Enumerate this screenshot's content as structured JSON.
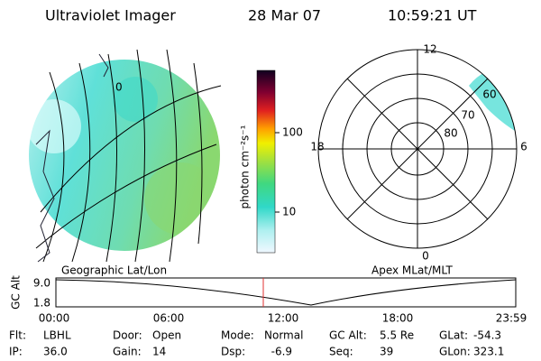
{
  "header": {
    "title": "Ultraviolet Imager",
    "date": "28 Mar 07",
    "time": "10:59:21 UT"
  },
  "geo_panel": {
    "label": "Geographic Lat/Lon",
    "annotation": "0"
  },
  "colorbar": {
    "label": "photon cm⁻²s⁻¹",
    "ticks": [
      "100",
      "10"
    ]
  },
  "polar_panel": {
    "label": "Apex MLat/MLT",
    "mlt_labels": [
      "12",
      "18",
      "6",
      "0"
    ],
    "lat_labels": [
      "60",
      "70",
      "80"
    ]
  },
  "orbit": {
    "ylabel": "GC Alt",
    "yticks": [
      "9.0",
      "1.8"
    ],
    "xticks": [
      "00:00",
      "06:00",
      "12:00",
      "18:00",
      "23:59"
    ]
  },
  "info": [
    [
      {
        "label": "Flt:",
        "value": "LBHL"
      },
      {
        "label": "Door:",
        "value": "Open"
      },
      {
        "label": "Mode:",
        "value": "Normal"
      },
      {
        "label": "GC Alt:",
        "value": "5.5 Re"
      },
      {
        "label": "GLat:",
        "value": "-54.3"
      }
    ],
    [
      {
        "label": "IP:",
        "value": "36.0"
      },
      {
        "label": "Gain:",
        "value": "14"
      },
      {
        "label": "Dsp:",
        "value": "  -6.9"
      },
      {
        "label": "Seq:",
        "value": "39"
      },
      {
        "label": "GLon:",
        "value": "323.1"
      }
    ]
  ]
}
